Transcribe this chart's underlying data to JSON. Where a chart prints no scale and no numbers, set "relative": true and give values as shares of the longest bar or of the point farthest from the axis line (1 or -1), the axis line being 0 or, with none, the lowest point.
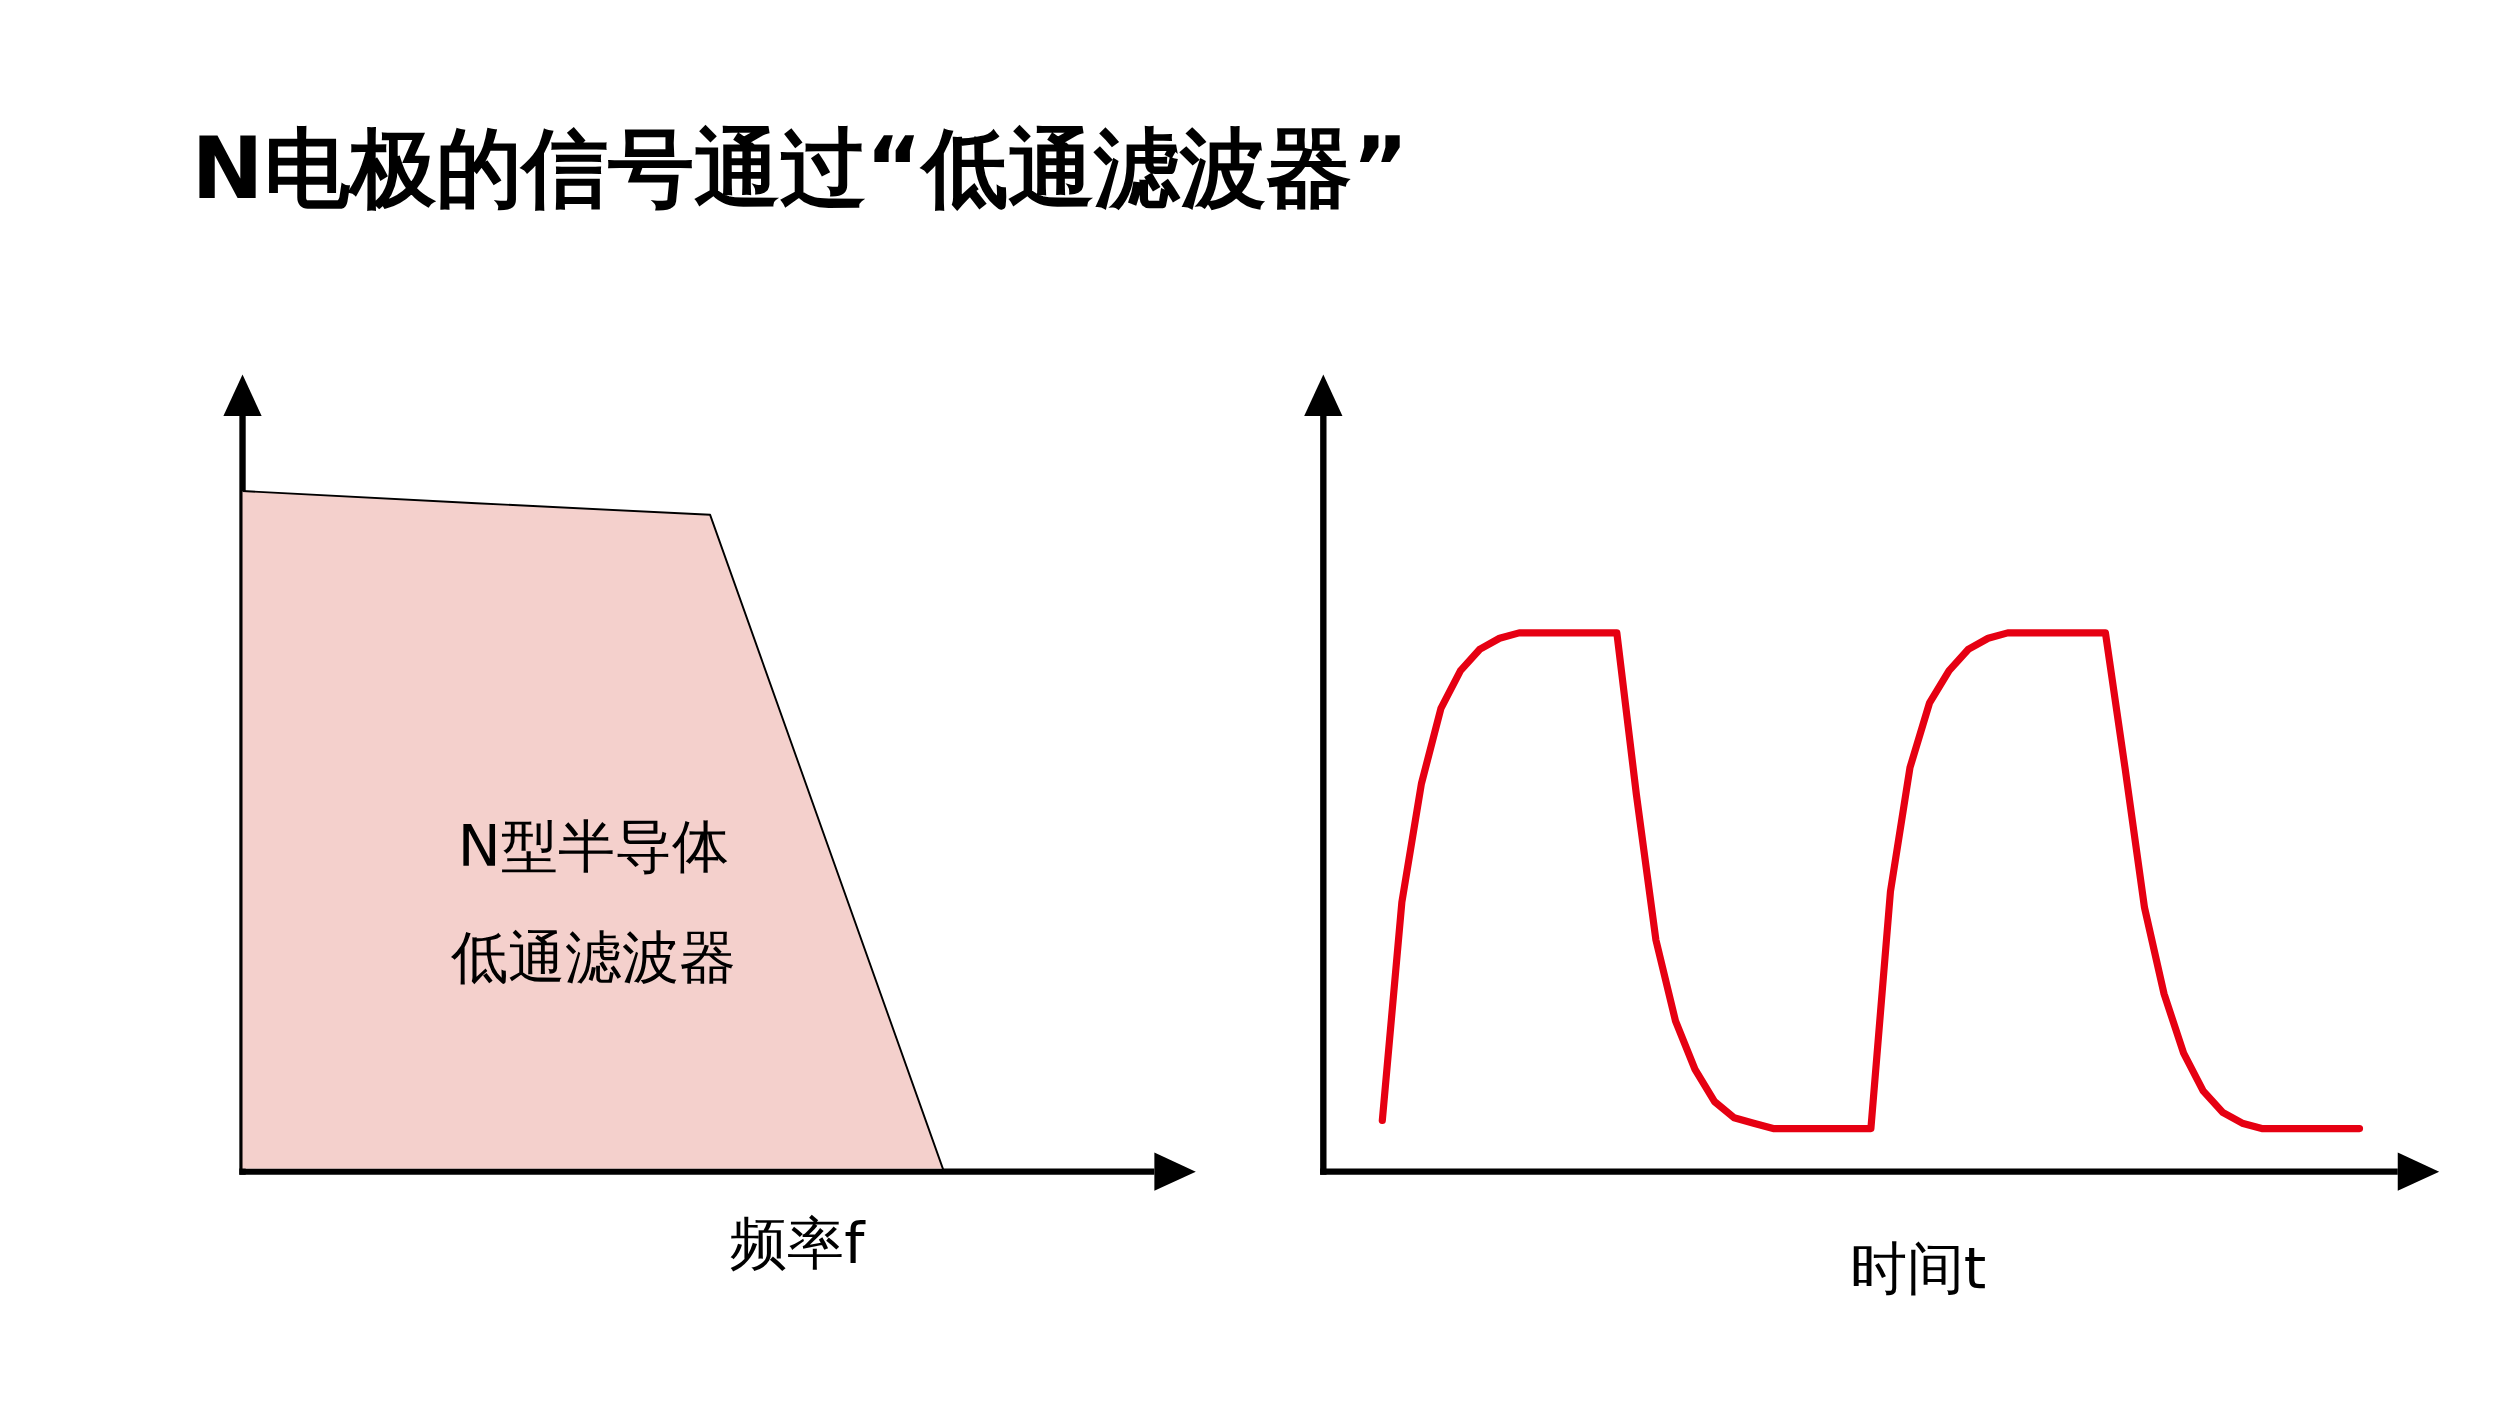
{
  "chart_data": [
    {
      "type": "area",
      "title": "N电极的信号通过“低通滤波器”",
      "xlabel": "频率f",
      "relative": true,
      "categories": [
        null,
        null,
        null,
        null
      ],
      "series": [
        {
          "color": "#f4d0cc",
          "values": [
            1,
            0.982,
            0.965,
            0
          ]
        }
      ],
      "annotations": [
        "N型半导体",
        "低通滤波器"
      ]
    },
    {
      "type": "line",
      "xlabel": "时间t",
      "relative": true,
      "categories": [
        null,
        null,
        null,
        null,
        null,
        null,
        null,
        null,
        null,
        null,
        null,
        null,
        null,
        null,
        null,
        null,
        null,
        null,
        null,
        null,
        null,
        null,
        null,
        null,
        null,
        null,
        null,
        null,
        null,
        null,
        null,
        null,
        null,
        null,
        null,
        null,
        null,
        null,
        null,
        null,
        null,
        null,
        null,
        null,
        null,
        null,
        null,
        null,
        null,
        null,
        null
      ],
      "series": [
        {
          "color": "#e60012",
          "values": [
            0.095,
            0.5,
            0.72,
            0.86,
            0.93,
            0.97,
            0.99,
            1,
            1,
            1,
            1,
            1,
            1,
            0.7,
            0.43,
            0.28,
            0.19,
            0.13,
            0.1,
            0.09,
            0.08,
            0.08,
            0.08,
            0.08,
            0.08,
            0.08,
            0.52,
            0.75,
            0.87,
            0.93,
            0.97,
            0.99,
            1,
            1,
            1,
            1,
            1,
            1,
            0.75,
            0.49,
            0.33,
            0.22,
            0.15,
            0.11,
            0.09,
            0.08,
            0.08,
            0.08,
            0.08,
            0.08,
            0.08
          ]
        }
      ]
    }
  ]
}
